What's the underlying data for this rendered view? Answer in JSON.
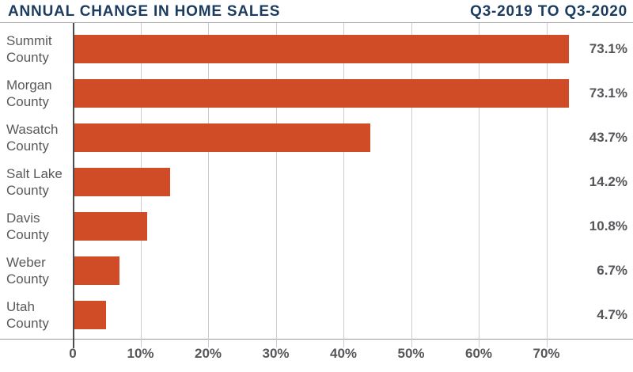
{
  "header": {
    "title": "ANNUAL CHANGE IN HOME SALES",
    "period": "Q3-2019 TO Q3-2020"
  },
  "colors": {
    "bar": "#cf4c27",
    "title_text": "#1b3c5f",
    "label_text": "#58595b",
    "grid_line": "#cccccc",
    "zero_line": "#4d4d4d"
  },
  "chart_data": {
    "type": "bar",
    "orientation": "horizontal",
    "title": "ANNUAL CHANGE IN HOME SALES",
    "subtitle": "Q3-2019 TO Q3-2020",
    "categories": [
      "Summit County",
      "Morgan County",
      "Wasatch County",
      "Salt Lake County",
      "Davis County",
      "Weber County",
      "Utah County"
    ],
    "values": [
      73.1,
      73.1,
      43.7,
      14.2,
      10.8,
      6.7,
      4.7
    ],
    "value_labels": [
      "73.1%",
      "73.1%",
      "43.7%",
      "14.2%",
      "10.8%",
      "6.7%",
      "4.7%"
    ],
    "x_ticks": [
      {
        "value": 0,
        "label": "0"
      },
      {
        "value": 10,
        "label": "10%"
      },
      {
        "value": 20,
        "label": "20%"
      },
      {
        "value": 30,
        "label": "30%"
      },
      {
        "value": 40,
        "label": "40%"
      },
      {
        "value": 50,
        "label": "50%"
      },
      {
        "value": 60,
        "label": "60%"
      },
      {
        "value": 70,
        "label": "70%"
      }
    ],
    "xlim": [
      0,
      82
    ],
    "grid": true,
    "legend": false,
    "xlabel": "",
    "ylabel": ""
  }
}
